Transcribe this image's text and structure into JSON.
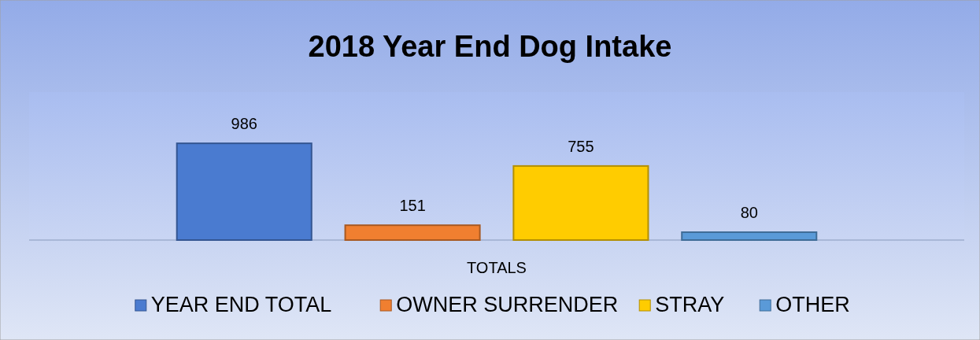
{
  "chart_data": {
    "type": "bar",
    "title": "2018 Year End Dog Intake",
    "xlabel": "TOTALS",
    "categories": [
      null
    ],
    "series": [
      {
        "name": "YEAR END TOTAL",
        "color": "#4a7bd0",
        "values": [
          986
        ]
      },
      {
        "name": "OWNER SURRENDER",
        "color": "#f07f30",
        "values": [
          151
        ]
      },
      {
        "name": "STRAY",
        "color": "#ffcc00",
        "values": [
          755
        ]
      },
      {
        "name": "OTHER",
        "color": "#5a9ad8",
        "values": [
          80
        ]
      }
    ],
    "data_labels": true,
    "legend": "bottom",
    "grid": false
  }
}
